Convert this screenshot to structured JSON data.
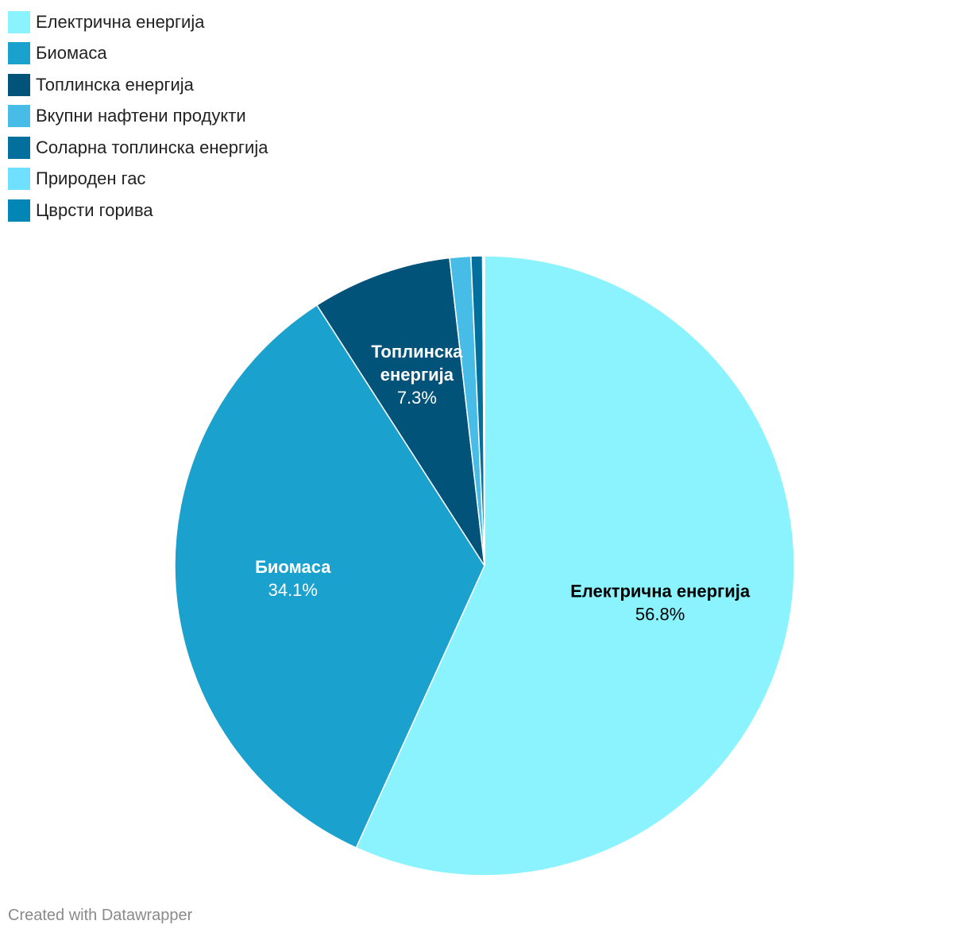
{
  "chart_data": {
    "type": "pie",
    "categories": [
      "Електрична енергија",
      "Биомаса",
      "Топлинска енергија",
      "Вкупни нафтени продукти",
      "Соларна топлинска енергија",
      "Природен гас",
      "Цврсти горива"
    ],
    "values": [
      56.8,
      34.1,
      7.3,
      1.1,
      0.6,
      0.05,
      0.05
    ],
    "colors": [
      "#8af3fe",
      "#1aa1ce",
      "#015379",
      "#47bce7",
      "#026f9c",
      "#6fe0ff",
      "#0286b5"
    ],
    "slice_labels": [
      {
        "name": "Електрична енергија",
        "value": "56.8%",
        "text_color": "#000000"
      },
      {
        "name": "Биомаса",
        "value": "34.1%",
        "text_color": "#ffffff"
      },
      {
        "name": "Топлинска\nенергија",
        "value": "7.3%",
        "text_color": "#ffffff"
      }
    ],
    "legend_position": "top-left"
  },
  "footer": {
    "credit": "Created with Datawrapper"
  }
}
